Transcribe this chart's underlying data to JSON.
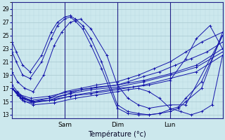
{
  "xlabel": "Température (°c)",
  "bg_color": "#cce8ed",
  "line_color": "#1414aa",
  "grid_major_color": "#a8c8d0",
  "grid_minor_color": "#b8d8e0",
  "ylim": [
    12.5,
    30.0
  ],
  "xlim": [
    0.0,
    2.0
  ],
  "yticks": [
    13,
    15,
    17,
    19,
    21,
    23,
    25,
    27,
    29
  ],
  "day_positions": [
    0.5,
    1.0,
    1.5
  ],
  "day_labels": [
    "Sam",
    "Dim",
    "Lun"
  ],
  "series": [
    {
      "x": [
        0.0,
        0.04,
        0.1,
        0.17,
        0.28,
        0.37,
        0.43,
        0.5,
        0.55,
        0.6,
        0.67,
        0.75,
        0.85,
        1.0,
        1.1,
        1.2,
        1.3,
        1.4,
        1.5,
        1.58,
        1.65,
        1.8,
        2.0
      ],
      "y": [
        24.0,
        22.5,
        20.5,
        19.5,
        22.0,
        25.5,
        27.0,
        27.8,
        28.0,
        27.5,
        26.5,
        24.5,
        21.0,
        14.5,
        13.5,
        13.2,
        13.0,
        13.2,
        13.5,
        14.0,
        15.0,
        17.0,
        25.5
      ]
    },
    {
      "x": [
        0.0,
        0.04,
        0.1,
        0.17,
        0.28,
        0.37,
        0.43,
        0.5,
        0.55,
        0.6,
        0.67,
        0.75,
        0.85,
        1.0,
        1.1,
        1.2,
        1.3,
        1.4,
        1.5,
        1.58,
        1.65,
        1.8,
        2.0
      ],
      "y": [
        22.5,
        21.0,
        19.0,
        18.5,
        21.0,
        24.5,
        26.5,
        27.5,
        27.8,
        27.2,
        26.0,
        23.5,
        20.0,
        14.0,
        13.2,
        13.0,
        13.0,
        13.2,
        13.8,
        14.2,
        15.5,
        18.0,
        25.0
      ]
    },
    {
      "x": [
        0.0,
        0.05,
        0.12,
        0.2,
        0.3,
        0.4,
        0.47,
        0.55,
        0.65,
        0.75,
        0.9,
        1.0,
        1.1,
        1.2,
        1.3,
        1.5,
        1.65,
        2.0
      ],
      "y": [
        19.5,
        18.0,
        17.0,
        16.5,
        19.0,
        23.5,
        25.5,
        27.0,
        27.5,
        26.0,
        22.0,
        17.5,
        15.5,
        14.5,
        14.0,
        14.5,
        14.5,
        25.0
      ]
    },
    {
      "x": [
        0.0,
        0.05,
        0.12,
        0.2,
        0.35,
        0.5,
        0.65,
        0.8,
        1.0,
        1.1,
        1.2,
        1.35,
        1.5,
        1.65,
        1.8,
        2.0
      ],
      "y": [
        17.5,
        16.5,
        15.5,
        15.0,
        15.5,
        16.5,
        17.0,
        17.5,
        18.0,
        18.5,
        19.0,
        20.0,
        21.0,
        22.5,
        24.0,
        25.5
      ]
    },
    {
      "x": [
        0.0,
        0.05,
        0.12,
        0.2,
        0.35,
        0.5,
        0.65,
        0.8,
        1.0,
        1.1,
        1.25,
        1.4,
        1.55,
        1.7,
        1.85,
        2.0
      ],
      "y": [
        17.0,
        16.0,
        15.0,
        14.8,
        15.2,
        16.0,
        16.8,
        17.2,
        17.5,
        18.0,
        18.8,
        19.5,
        20.5,
        21.5,
        22.5,
        24.0
      ]
    },
    {
      "x": [
        0.0,
        0.08,
        0.18,
        0.35,
        0.55,
        0.75,
        1.0,
        1.25,
        1.5,
        1.75,
        2.0
      ],
      "y": [
        17.0,
        16.0,
        15.5,
        15.8,
        16.5,
        17.0,
        17.5,
        18.2,
        19.2,
        20.5,
        23.0
      ]
    },
    {
      "x": [
        0.0,
        0.08,
        0.18,
        0.35,
        0.55,
        0.75,
        1.0,
        1.25,
        1.5,
        1.75,
        2.0
      ],
      "y": [
        17.0,
        15.8,
        15.2,
        15.5,
        16.2,
        16.8,
        17.2,
        18.0,
        19.0,
        20.2,
        22.5
      ]
    },
    {
      "x": [
        0.0,
        0.08,
        0.18,
        0.35,
        0.55,
        0.75,
        1.0,
        1.25,
        1.5,
        1.75,
        2.0
      ],
      "y": [
        17.0,
        15.5,
        15.0,
        15.2,
        15.8,
        16.2,
        16.8,
        17.5,
        18.5,
        19.5,
        22.0
      ]
    },
    {
      "x": [
        0.0,
        0.1,
        0.2,
        0.4,
        0.6,
        0.8,
        1.0,
        1.15,
        1.3,
        1.5,
        1.65,
        1.75,
        1.88,
        2.0
      ],
      "y": [
        17.0,
        15.5,
        15.0,
        15.2,
        16.0,
        16.5,
        17.0,
        17.2,
        17.5,
        18.2,
        21.5,
        24.5,
        26.5,
        23.0
      ]
    },
    {
      "x": [
        0.0,
        0.1,
        0.2,
        0.4,
        0.6,
        0.8,
        1.0,
        1.1,
        1.2,
        1.3,
        1.4,
        1.5,
        1.6,
        1.7,
        1.8,
        1.9,
        2.0
      ],
      "y": [
        17.0,
        15.2,
        14.5,
        14.8,
        15.5,
        16.0,
        16.5,
        16.8,
        17.0,
        16.5,
        15.5,
        14.0,
        13.5,
        13.0,
        13.5,
        14.5,
        22.0
      ]
    }
  ]
}
